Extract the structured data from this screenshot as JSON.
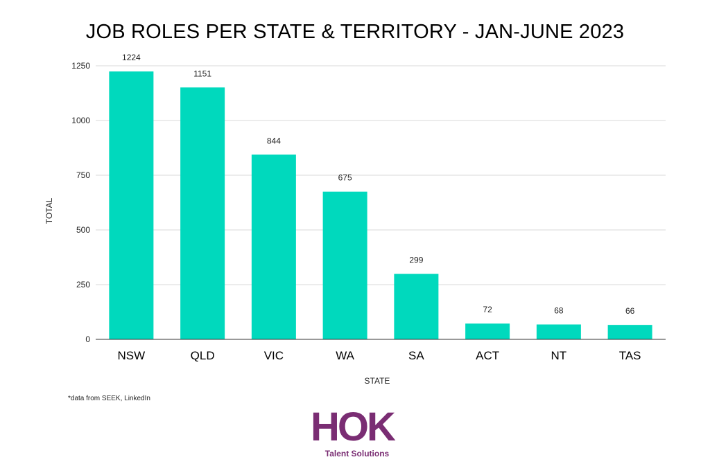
{
  "chart_data": {
    "type": "bar",
    "title": "JOB ROLES PER STATE & TERRITORY - JAN-JUNE 2023",
    "xlabel": "STATE",
    "ylabel": "TOTAL",
    "categories": [
      "NSW",
      "QLD",
      "VIC",
      "WA",
      "SA",
      "ACT",
      "NT",
      "TAS"
    ],
    "values": [
      1224,
      1151,
      844,
      675,
      299,
      72,
      68,
      66
    ],
    "data_labels": [
      "1224",
      "1151",
      "844",
      "675",
      "299",
      "72",
      "68",
      "66"
    ],
    "ylim": [
      0,
      1250
    ],
    "yticks": [
      0,
      250,
      500,
      750,
      1000,
      1250
    ],
    "ytick_labels": [
      "0",
      "250",
      "500",
      "750",
      "1000",
      "1250"
    ],
    "grid": true,
    "legend": "none",
    "bar_color": "#00d9bd"
  },
  "footnote": "*data from SEEK, LinkedIn",
  "logo": {
    "mark": "HOK",
    "tagline": "Talent Solutions",
    "color": "#7a2d73"
  }
}
